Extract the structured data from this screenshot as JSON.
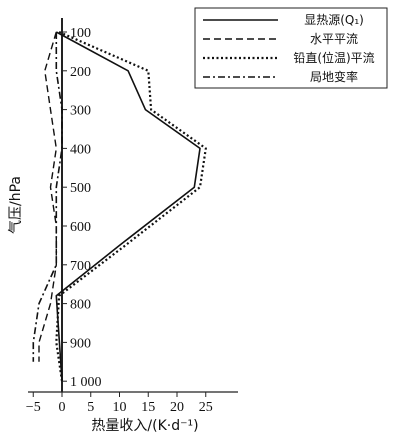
{
  "chart_data": {
    "type": "line",
    "xlabel": "热量收入/(K·d⁻¹)",
    "ylabel": "气压/hPa",
    "xlim": [
      -7,
      28
    ],
    "ylim": [
      1030,
      85
    ],
    "x_ticks": [
      -5,
      0,
      5,
      10,
      15,
      20,
      25
    ],
    "x_tick_labels": [
      "−5",
      "0",
      "5",
      "10",
      "15",
      "20",
      "25"
    ],
    "y_ticks": [
      100,
      200,
      300,
      400,
      500,
      600,
      700,
      800,
      900,
      1000
    ],
    "y_tick_labels": [
      "100",
      "200",
      "300",
      "400",
      "500",
      "600",
      "700",
      "800",
      "900",
      "1 000"
    ],
    "legend_position": "top-right",
    "series": [
      {
        "name": "显热源(Q₁)",
        "style": "solid",
        "x": [
          -1,
          11.5,
          14.5,
          24,
          23,
          10,
          -1,
          0
        ],
        "y": [
          100,
          200,
          300,
          400,
          500,
          650,
          780,
          1000
        ]
      },
      {
        "name": "水平平流",
        "style": "dashed",
        "x": [
          -1,
          -3,
          -2,
          -1,
          -2,
          -1,
          -1,
          -2,
          -4,
          -4
        ],
        "y": [
          100,
          200,
          300,
          400,
          500,
          600,
          700,
          800,
          900,
          950
        ]
      },
      {
        "name": "铅直(位温)平流",
        "style": "dotted",
        "x": [
          -0.5,
          15,
          15.5,
          25,
          24,
          11,
          -0.5,
          -1,
          0
        ],
        "y": [
          100,
          200,
          300,
          400,
          500,
          650,
          780,
          900,
          1000
        ]
      },
      {
        "name": "局地变率",
        "style": "dashdot",
        "x": [
          -1,
          -1,
          0,
          0,
          -1,
          -1,
          -4,
          -5,
          -5
        ],
        "y": [
          100,
          200,
          300,
          400,
          500,
          700,
          800,
          900,
          950
        ]
      }
    ]
  }
}
